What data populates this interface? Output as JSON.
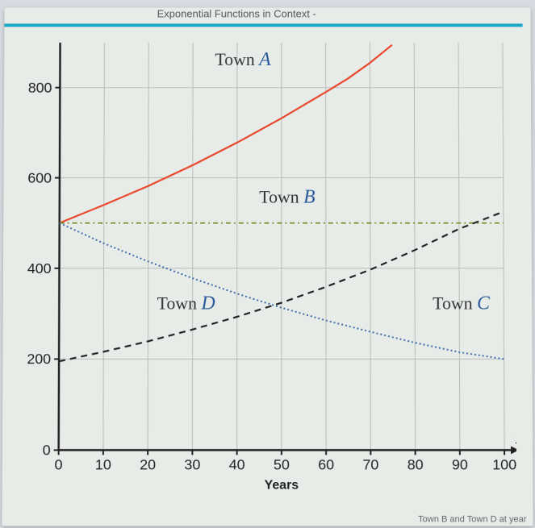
{
  "header": {
    "title": "Exponential Functions in Context -",
    "rule_color": "#1ba8c4"
  },
  "chart": {
    "type": "line",
    "background_color": "#e8ece8",
    "grid_color": "#b8bcb8",
    "axis_color": "#222222",
    "x": {
      "label": "Years",
      "var": "x",
      "min": 0,
      "max": 100,
      "ticks": [
        0,
        10,
        20,
        30,
        40,
        50,
        60,
        70,
        80,
        90,
        100
      ]
    },
    "y": {
      "min": 0,
      "max": 900,
      "ticks": [
        0,
        200,
        400,
        600,
        800
      ]
    },
    "series": {
      "A": {
        "label_word": "Town ",
        "label_letter": "A",
        "label_pos": {
          "x": 35,
          "y": 850
        },
        "color": "#e8452a",
        "dash": "",
        "width": 2.2,
        "points": [
          [
            0,
            500
          ],
          [
            10,
            540
          ],
          [
            20,
            582
          ],
          [
            30,
            628
          ],
          [
            40,
            678
          ],
          [
            50,
            732
          ],
          [
            60,
            790
          ],
          [
            65,
            820
          ],
          [
            70,
            855
          ],
          [
            75,
            895
          ]
        ]
      },
      "B": {
        "label_word": "Town ",
        "label_letter": "B",
        "label_pos": {
          "x": 45,
          "y": 545
        },
        "color": "#7a8a2a",
        "dash": "6 4 2 4",
        "width": 1.8,
        "points": [
          [
            0,
            500
          ],
          [
            100,
            500
          ]
        ]
      },
      "C": {
        "label_word": "Town ",
        "label_letter": "C",
        "label_pos": {
          "x": 84,
          "y": 310
        },
        "color": "#222222",
        "dash": "8 6",
        "width": 2.2,
        "points": [
          [
            0,
            195
          ],
          [
            10,
            216
          ],
          [
            20,
            239
          ],
          [
            30,
            265
          ],
          [
            40,
            293
          ],
          [
            50,
            324
          ],
          [
            60,
            359
          ],
          [
            70,
            397
          ],
          [
            80,
            440
          ],
          [
            90,
            487
          ],
          [
            100,
            525
          ]
        ]
      },
      "D": {
        "label_word": "Town ",
        "label_letter": "D",
        "label_pos": {
          "x": 22,
          "y": 310
        },
        "color": "#3a6aa8",
        "dash": "2 3",
        "width": 2,
        "points": [
          [
            0,
            500
          ],
          [
            10,
            455
          ],
          [
            20,
            415
          ],
          [
            30,
            378
          ],
          [
            40,
            344
          ],
          [
            50,
            313
          ],
          [
            60,
            285
          ],
          [
            70,
            260
          ],
          [
            80,
            236
          ],
          [
            90,
            215
          ],
          [
            100,
            200
          ]
        ]
      }
    },
    "label_letter_color": "#2a5a9a"
  },
  "footer": {
    "fragment": "Town B and Town D at year"
  }
}
